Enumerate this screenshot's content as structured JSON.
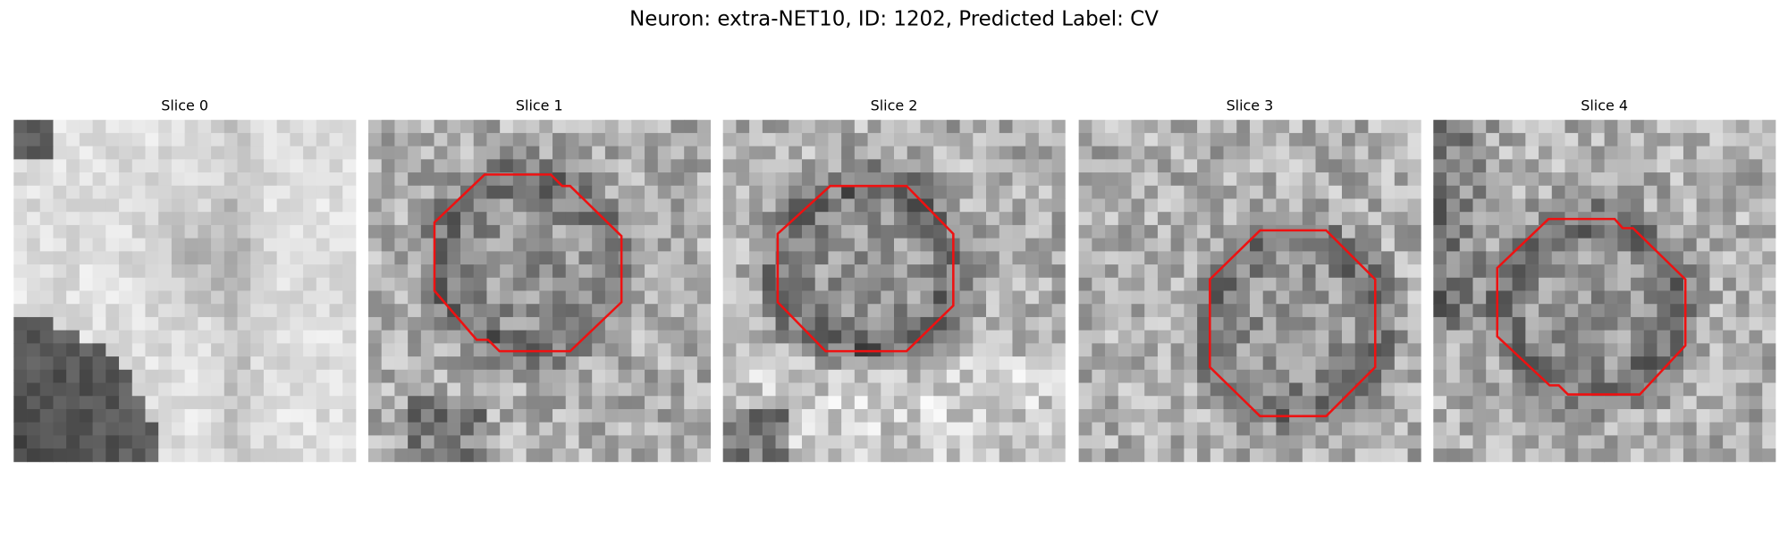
{
  "title": "Neuron: extra-NET10, ID: 1202, Predicted Label: CV",
  "panels": [
    {
      "title": "Slice 0"
    },
    {
      "title": "Slice 1"
    },
    {
      "title": "Slice 2"
    },
    {
      "title": "Slice 3"
    },
    {
      "title": "Slice 4"
    }
  ]
}
